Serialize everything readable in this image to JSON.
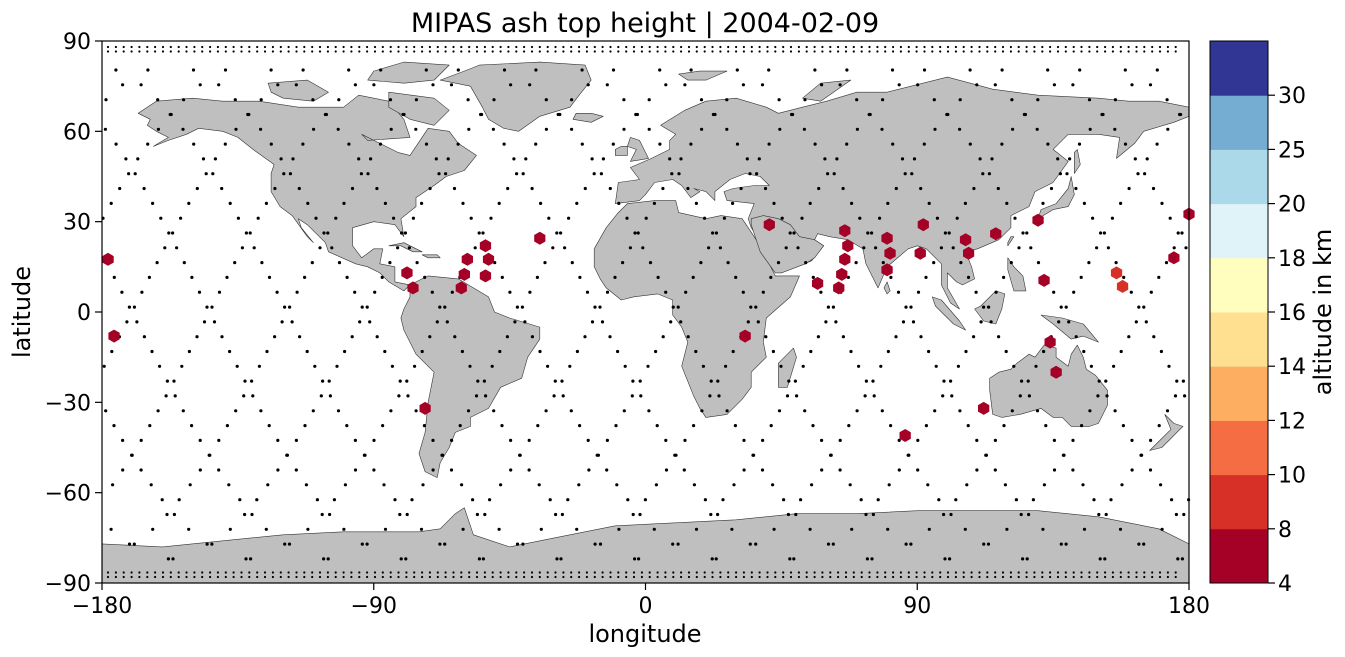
{
  "chart_data": {
    "type": "scatter",
    "title": "MIPAS ash top height | 2004-02-09",
    "xlabel": "longitude",
    "ylabel": "latitude",
    "xlim": [
      -180,
      180
    ],
    "ylim": [
      -90,
      90
    ],
    "xticks": [
      -180,
      -90,
      0,
      90,
      180
    ],
    "yticks": [
      -90,
      -60,
      -30,
      0,
      30,
      60,
      90
    ],
    "xtick_labels": [
      "−180",
      "−90",
      "0",
      "90",
      "180"
    ],
    "ytick_labels": [
      "−90",
      "−60",
      "−30",
      "0",
      "30",
      "60",
      "90"
    ],
    "grid": false,
    "basemap": "world coastlines, land filled grey",
    "colorbar": {
      "label": "altitude in km",
      "bounds": [
        4,
        8,
        10,
        12,
        14,
        16,
        18,
        20,
        25,
        30
      ],
      "tick_labels": [
        "4",
        "8",
        "10",
        "12",
        "14",
        "16",
        "18",
        "20",
        "25",
        "30"
      ],
      "colors": [
        "#a50026",
        "#d73027",
        "#f46d43",
        "#fdae61",
        "#fee090",
        "#fffebf",
        "#e0f3f8",
        "#abd9e9",
        "#74add1",
        "#313695"
      ]
    },
    "colors": {
      "land": "#bfbfbf",
      "coast": "#333333",
      "track": "#000000"
    },
    "ash_detections": [
      {
        "lon": -178,
        "lat": 17.5,
        "alt": 6
      },
      {
        "lon": -176,
        "lat": -8,
        "alt": 6
      },
      {
        "lon": -79,
        "lat": 13,
        "alt": 6
      },
      {
        "lon": -77,
        "lat": 8,
        "alt": 6
      },
      {
        "lon": -73,
        "lat": -32,
        "alt": 6
      },
      {
        "lon": -61,
        "lat": 8,
        "alt": 6
      },
      {
        "lon": -60,
        "lat": 12.5,
        "alt": 6
      },
      {
        "lon": -59,
        "lat": 17.5,
        "alt": 6
      },
      {
        "lon": -53,
        "lat": 22,
        "alt": 6
      },
      {
        "lon": -52,
        "lat": 17.5,
        "alt": 6
      },
      {
        "lon": -53,
        "lat": 12,
        "alt": 6
      },
      {
        "lon": -35,
        "lat": 24.5,
        "alt": 6
      },
      {
        "lon": 33,
        "lat": -8,
        "alt": 6
      },
      {
        "lon": 41,
        "lat": 29,
        "alt": 6
      },
      {
        "lon": 57,
        "lat": 9.5,
        "alt": 6
      },
      {
        "lon": 64,
        "lat": 8,
        "alt": 6
      },
      {
        "lon": 65,
        "lat": 12.5,
        "alt": 6
      },
      {
        "lon": 66,
        "lat": 17.5,
        "alt": 6
      },
      {
        "lon": 67,
        "lat": 22,
        "alt": 6
      },
      {
        "lon": 66,
        "lat": 27,
        "alt": 6
      },
      {
        "lon": 80,
        "lat": 14,
        "alt": 6
      },
      {
        "lon": 81,
        "lat": 19.5,
        "alt": 6
      },
      {
        "lon": 80,
        "lat": 24.5,
        "alt": 6
      },
      {
        "lon": 86,
        "lat": -41,
        "alt": 6
      },
      {
        "lon": 91,
        "lat": 19.5,
        "alt": 6
      },
      {
        "lon": 92,
        "lat": 29,
        "alt": 6
      },
      {
        "lon": 106,
        "lat": 24,
        "alt": 6
      },
      {
        "lon": 107,
        "lat": 19.5,
        "alt": 6
      },
      {
        "lon": 112,
        "lat": -32,
        "alt": 6
      },
      {
        "lon": 116,
        "lat": 26,
        "alt": 6
      },
      {
        "lon": 130,
        "lat": 30.5,
        "alt": 6
      },
      {
        "lon": 132,
        "lat": 10.5,
        "alt": 6
      },
      {
        "lon": 134,
        "lat": -10,
        "alt": 6
      },
      {
        "lon": 136,
        "lat": -20,
        "alt": 6
      },
      {
        "lon": 156,
        "lat": 13,
        "alt": 9
      },
      {
        "lon": 158,
        "lat": 8.5,
        "alt": 9
      },
      {
        "lon": 175,
        "lat": 18,
        "alt": 6
      },
      {
        "lon": 180,
        "lat": 32.5,
        "alt": 6
      }
    ]
  }
}
